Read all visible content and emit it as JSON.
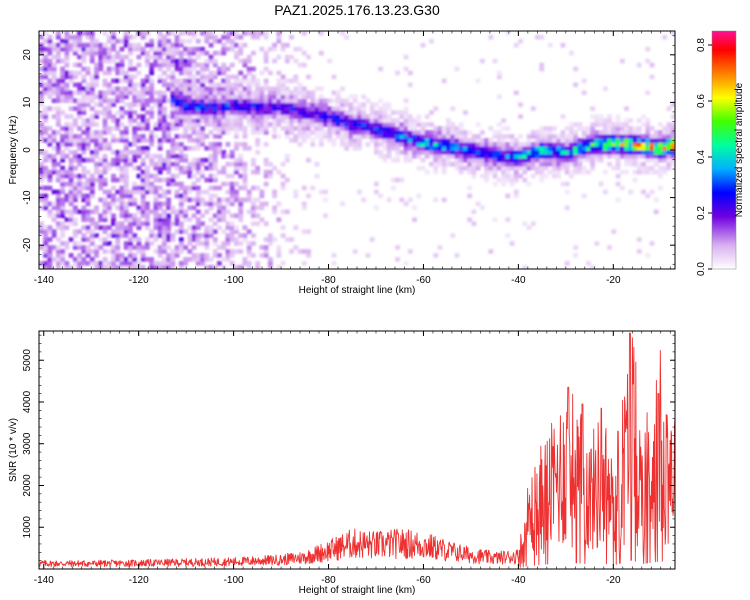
{
  "figure": {
    "title": "PAZ1.2025.176.13.23.G30"
  },
  "chart_data": [
    {
      "type": "heatmap",
      "xlabel": "Height of straight line (km)",
      "ylabel": "Frequency (Hz)",
      "xlim": [
        -141,
        -7
      ],
      "ylim": [
        -25,
        25
      ],
      "xticks": [
        -140,
        -120,
        -100,
        -80,
        -60,
        -40,
        -20
      ],
      "yticks": [
        -20,
        -10,
        0,
        10,
        20
      ],
      "colorbar": {
        "label": "Normalized spectral amplitude",
        "range": [
          0,
          0.85
        ],
        "ticks": [
          0.0,
          0.2,
          0.4,
          0.6,
          0.8
        ],
        "colors": [
          "#ffffff",
          "#d8b0f0",
          "#7000e0",
          "#0000ff",
          "#00b0ff",
          "#00ffa0",
          "#40ff00",
          "#ffff00",
          "#ff8000",
          "#ff0000",
          "#ff1090"
        ]
      },
      "ridge": {
        "x_km": [
          -113,
          -110,
          -105,
          -100,
          -95,
          -90,
          -85,
          -80,
          -75,
          -70,
          -65,
          -60,
          -55,
          -50,
          -45,
          -40,
          -35,
          -30,
          -25,
          -20,
          -15,
          -10,
          -7
        ],
        "frequency_hz": [
          11,
          9.5,
          9,
          9.5,
          9,
          9,
          8,
          7,
          5.5,
          4.5,
          3,
          1.5,
          1,
          0,
          -1,
          -1.5,
          0,
          -0.5,
          1,
          1.5,
          1,
          0.5,
          1
        ],
        "amplitude": [
          0.3,
          0.35,
          0.32,
          0.3,
          0.3,
          0.28,
          0.28,
          0.28,
          0.32,
          0.3,
          0.34,
          0.4,
          0.4,
          0.35,
          0.33,
          0.38,
          0.45,
          0.4,
          0.5,
          0.6,
          0.7,
          0.8,
          0.75
        ]
      },
      "background_noise": {
        "x_range_km": [
          -141,
          -83
        ],
        "amplitude": 0.2
      }
    },
    {
      "type": "line",
      "xlabel": "Height of straight line (km)",
      "ylabel": "SNR (10 * v/v)",
      "xlim": [
        -141,
        -7
      ],
      "ylim": [
        0,
        5700
      ],
      "xticks": [
        -140,
        -120,
        -100,
        -80,
        -60,
        -40,
        -20
      ],
      "yticks": [
        1000,
        2000,
        3000,
        4000,
        5000
      ],
      "color": "#ee3030",
      "envelope": {
        "x_km": [
          -141,
          -130,
          -120,
          -110,
          -100,
          -90,
          -85,
          -80,
          -75,
          -70,
          -65,
          -60,
          -55,
          -50,
          -45,
          -40,
          -38,
          -35,
          -33,
          -30,
          -28,
          -25,
          -22,
          -20,
          -18,
          -16,
          -14,
          -12,
          -10,
          -8,
          -7
        ],
        "snr": [
          150,
          150,
          160,
          180,
          200,
          250,
          320,
          500,
          700,
          650,
          700,
          650,
          500,
          380,
          300,
          350,
          1500,
          2200,
          2500,
          3200,
          3000,
          2300,
          2800,
          1800,
          3100,
          4300,
          2400,
          3200,
          3800,
          3300,
          3000
        ]
      },
      "peaks": [
        {
          "x": -16.5,
          "snr": 5650
        },
        {
          "x": -29.5,
          "snr": 4350
        },
        {
          "x": -10.5,
          "snr": 4200
        },
        {
          "x": -26.5,
          "snr": 3950
        },
        {
          "x": -22.5,
          "snr": 3850
        },
        {
          "x": -19,
          "snr": 3300
        }
      ]
    }
  ]
}
